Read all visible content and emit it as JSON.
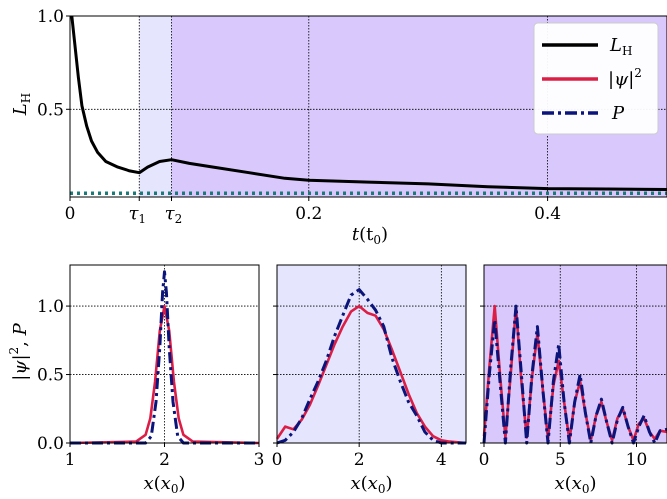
{
  "colors": {
    "total": "#000000",
    "psi": "#dc1e46",
    "p": "#0a147a",
    "dotted": "#1a7a78",
    "shade_light": "#e5e6fd",
    "shade_dark": "#d8c8fb"
  },
  "chart_data": [
    {
      "type": "line",
      "xlabel": "t(t_0)",
      "ylabel": "L_H",
      "xlim": [
        0,
        0.5
      ],
      "ylim": [
        0.03,
        1.0
      ],
      "xticks": [
        0,
        0.2,
        0.4
      ],
      "xtick_labels": [
        "0",
        "0.2",
        "0.4"
      ],
      "extra_ticks": [
        {
          "x": 0.058,
          "label": "τ1"
        },
        {
          "x": 0.085,
          "label": "τ2"
        }
      ],
      "yticks": [
        0.5,
        1.0
      ],
      "ytick_labels": [
        "0.5",
        "1.0"
      ],
      "grid": true,
      "legend_position": "top-right",
      "regions": [
        {
          "from": 0.058,
          "to": 0.085,
          "shade": "light"
        },
        {
          "from": 0.085,
          "to": 0.5,
          "shade": "dark"
        }
      ],
      "series": [
        {
          "name": "L_H",
          "x": [
            0.0015,
            0.004,
            0.007,
            0.01,
            0.014,
            0.018,
            0.023,
            0.03,
            0.04,
            0.05,
            0.058,
            0.065,
            0.075,
            0.085,
            0.1,
            0.12,
            0.15,
            0.18,
            0.2,
            0.25,
            0.3,
            0.35,
            0.4,
            0.45,
            0.5
          ],
          "y": [
            1.0,
            0.85,
            0.67,
            0.52,
            0.41,
            0.33,
            0.27,
            0.22,
            0.19,
            0.17,
            0.16,
            0.19,
            0.22,
            0.23,
            0.21,
            0.19,
            0.16,
            0.13,
            0.12,
            0.11,
            0.1,
            0.085,
            0.075,
            0.073,
            0.07
          ]
        },
        {
          "x": [
            0,
            0.5
          ],
          "y": [
            0.05,
            0.05
          ]
        }
      ],
      "legend": [
        "L_H",
        "|ψ|^2",
        "P"
      ]
    },
    {
      "type": "line",
      "xlabel": "x(x_0)",
      "ylabel": "|ψ|^2, P",
      "xlim": [
        1,
        3
      ],
      "ylim": [
        0,
        1.3
      ],
      "xticks": [
        1,
        2,
        3
      ],
      "xtick_labels": [
        "1",
        "2",
        "3"
      ],
      "yticks": [
        0.0,
        0.5,
        1.0
      ],
      "ytick_labels": [
        "0.0",
        "0.5",
        "1.0"
      ],
      "shade": "none",
      "series": [
        {
          "name": "|ψ|^2",
          "x": [
            1.0,
            1.7,
            1.8,
            1.85,
            1.9,
            1.95,
            2.0,
            2.05,
            2.1,
            2.15,
            2.2,
            2.3,
            3.0
          ],
          "y": [
            0,
            0.01,
            0.06,
            0.18,
            0.45,
            0.82,
            1.0,
            0.82,
            0.45,
            0.18,
            0.06,
            0.01,
            0
          ]
        },
        {
          "name": "P",
          "x": [
            1.0,
            1.8,
            1.86,
            1.91,
            1.95,
            1.98,
            2.0,
            2.02,
            2.05,
            2.09,
            2.14,
            2.2,
            3.0
          ],
          "y": [
            0,
            0.0,
            0.05,
            0.3,
            0.7,
            1.1,
            1.25,
            1.1,
            0.7,
            0.3,
            0.05,
            0.0,
            0
          ]
        }
      ]
    },
    {
      "type": "line",
      "xlabel": "x(x_0)",
      "xlim": [
        0,
        4.6
      ],
      "ylim": [
        0,
        1.3
      ],
      "xticks": [
        0,
        2,
        4
      ],
      "xtick_labels": [
        "0",
        "2",
        "4"
      ],
      "shade": "light",
      "series": [
        {
          "name": "|ψ|^2",
          "x": [
            0.0,
            0.2,
            0.4,
            0.6,
            0.8,
            1.0,
            1.2,
            1.4,
            1.6,
            1.8,
            2.0,
            2.2,
            2.4,
            2.6,
            2.8,
            3.0,
            3.2,
            3.4,
            3.6,
            3.8,
            4.0,
            4.2,
            4.6
          ],
          "y": [
            0.03,
            0.12,
            0.1,
            0.17,
            0.28,
            0.42,
            0.57,
            0.72,
            0.85,
            0.96,
            1.0,
            0.95,
            0.93,
            0.83,
            0.68,
            0.52,
            0.36,
            0.22,
            0.12,
            0.05,
            0.02,
            0.01,
            0
          ]
        },
        {
          "name": "P",
          "x": [
            0.0,
            0.2,
            0.4,
            0.6,
            0.8,
            1.0,
            1.2,
            1.4,
            1.6,
            1.8,
            2.0,
            2.2,
            2.4,
            2.6,
            2.8,
            3.0,
            3.2,
            3.4,
            3.6,
            3.8,
            4.0,
            4.2,
            4.6
          ],
          "y": [
            0.0,
            0.02,
            0.08,
            0.18,
            0.32,
            0.45,
            0.6,
            0.78,
            0.93,
            1.08,
            1.12,
            1.05,
            0.97,
            0.85,
            0.62,
            0.45,
            0.3,
            0.2,
            0.08,
            0.02,
            0.0,
            0.0,
            0
          ]
        }
      ]
    },
    {
      "type": "line",
      "xlabel": "x(x_0)",
      "xlim": [
        0,
        12
      ],
      "ylim": [
        0,
        1.3
      ],
      "xticks": [
        0,
        5,
        10
      ],
      "xtick_labels": [
        "0",
        "5",
        "10"
      ],
      "shade": "dark",
      "series": [
        {
          "name": "|ψ|^2",
          "x": [
            0,
            0.35,
            0.7,
            1.05,
            1.4,
            1.75,
            2.1,
            2.45,
            2.8,
            3.15,
            3.5,
            3.85,
            4.2,
            4.55,
            4.9,
            5.25,
            5.6,
            5.95,
            6.3,
            6.65,
            7.0,
            7.35,
            7.7,
            8.05,
            8.4,
            8.75,
            9.1,
            9.45,
            9.8,
            10.15,
            10.5,
            10.85,
            11.2,
            11.55,
            12.0
          ],
          "y": [
            0.05,
            0.55,
            1.0,
            0.5,
            0.04,
            0.5,
            0.99,
            0.45,
            0.04,
            0.48,
            0.8,
            0.4,
            0.03,
            0.42,
            0.6,
            0.3,
            0.02,
            0.3,
            0.45,
            0.22,
            0.02,
            0.2,
            0.3,
            0.15,
            0.02,
            0.18,
            0.25,
            0.12,
            0.02,
            0.14,
            0.18,
            0.08,
            0.03,
            0.09,
            0.08
          ]
        },
        {
          "name": "P",
          "x": [
            0,
            0.35,
            0.7,
            1.05,
            1.4,
            1.75,
            2.1,
            2.45,
            2.8,
            3.15,
            3.5,
            3.85,
            4.2,
            4.55,
            4.9,
            5.25,
            5.6,
            5.95,
            6.3,
            6.65,
            7.0,
            7.35,
            7.7,
            8.05,
            8.4,
            8.75,
            9.1,
            9.45,
            9.8,
            10.15,
            10.5,
            10.85,
            11.2,
            11.55,
            12.0
          ],
          "y": [
            0.0,
            0.5,
            0.9,
            0.45,
            0.0,
            0.55,
            1.0,
            0.5,
            0.0,
            0.5,
            0.85,
            0.4,
            0.0,
            0.45,
            0.72,
            0.3,
            0.0,
            0.3,
            0.5,
            0.22,
            0.0,
            0.2,
            0.32,
            0.15,
            0.0,
            0.17,
            0.26,
            0.12,
            0.0,
            0.12,
            0.2,
            0.08,
            0.0,
            0.09,
            0.1
          ]
        }
      ]
    }
  ]
}
